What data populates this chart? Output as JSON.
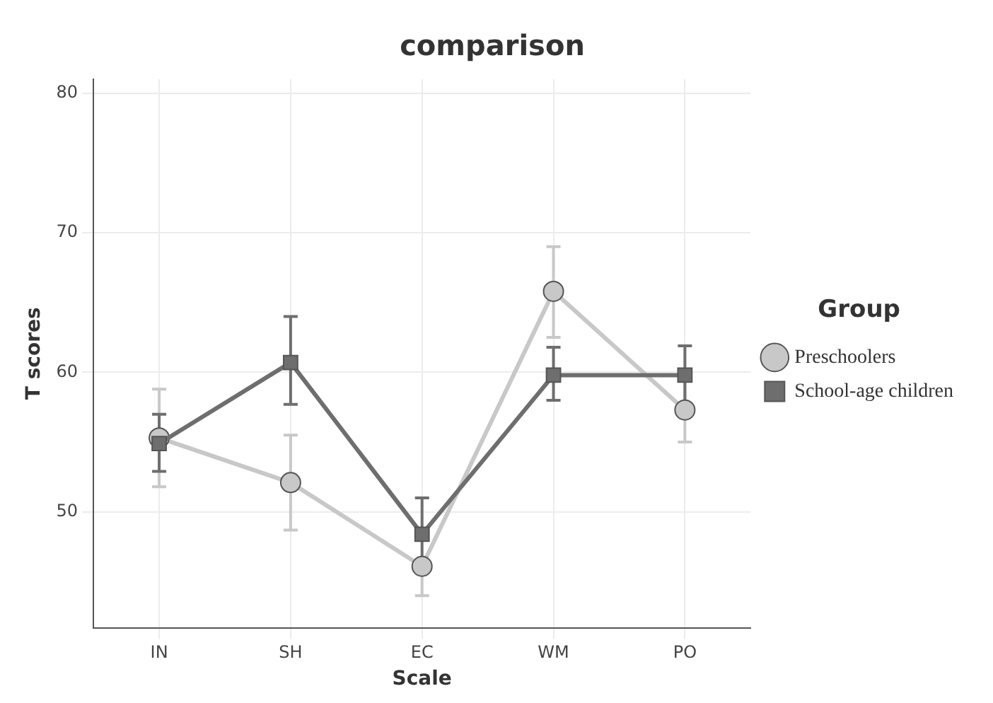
{
  "chart_data": {
    "type": "line",
    "title": "comparison",
    "xlabel": "Scale",
    "ylabel": "T scores",
    "legend_title": "Group",
    "categories": [
      "IN",
      "SH",
      "EC",
      "WM",
      "PO"
    ],
    "series": [
      {
        "name": "Preschoolers",
        "color": "#c8c8c8",
        "marker": "circle",
        "values": [
          55.3,
          52.1,
          46.1,
          65.8,
          57.3
        ],
        "errors": [
          [
            51.8,
            58.8
          ],
          [
            48.7,
            55.5
          ],
          [
            44.0,
            46.1
          ],
          [
            62.5,
            69.0
          ],
          [
            55.0,
            59.5
          ]
        ]
      },
      {
        "name": "School-age children",
        "color": "#6e6e6e",
        "marker": "square",
        "values": [
          54.9,
          60.7,
          48.4,
          59.8,
          59.8
        ],
        "errors": [
          [
            52.9,
            57.0
          ],
          [
            57.7,
            64.0
          ],
          [
            46.5,
            51.0
          ],
          [
            58.0,
            61.8
          ],
          [
            57.7,
            61.9
          ]
        ]
      }
    ],
    "ylim": [
      41.7,
      81
    ],
    "yticks": [
      50,
      60,
      70,
      80
    ],
    "grid": true,
    "legend": "right",
    "line_style": "solid"
  }
}
